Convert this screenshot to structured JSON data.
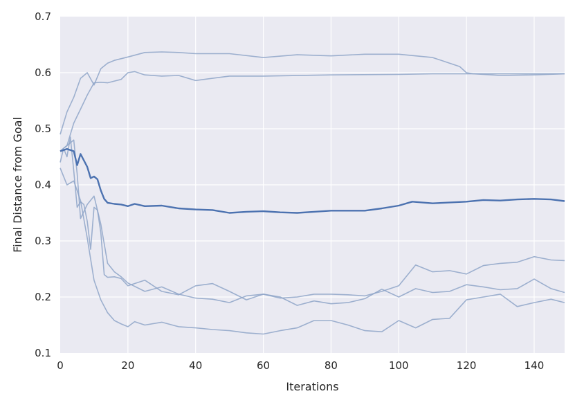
{
  "chart_data": {
    "type": "line",
    "title": "",
    "xlabel": "Iterations",
    "ylabel": "Final Distance from Goal",
    "xlim": [
      0,
      149
    ],
    "ylim": [
      0.1,
      0.7
    ],
    "xticks": [
      0,
      20,
      40,
      60,
      80,
      100,
      120,
      140
    ],
    "yticks": [
      0.1,
      0.2,
      0.3,
      0.4,
      0.5,
      0.6,
      0.7
    ],
    "grid": true,
    "background": "#EAEAF2",
    "mean_color": "#4C72B0",
    "run_color": "#8EA4C8",
    "series": [
      {
        "role": "mean",
        "x": [
          0,
          2,
          4,
          5,
          6,
          8,
          9,
          10,
          11,
          12,
          13,
          14,
          16,
          18,
          20,
          22,
          25,
          30,
          35,
          40,
          45,
          50,
          55,
          60,
          65,
          70,
          75,
          80,
          85,
          90,
          95,
          100,
          104,
          110,
          120,
          125,
          130,
          135,
          140,
          145,
          149
        ],
        "y": [
          0.46,
          0.464,
          0.46,
          0.435,
          0.455,
          0.432,
          0.412,
          0.415,
          0.41,
          0.39,
          0.375,
          0.368,
          0.366,
          0.365,
          0.362,
          0.366,
          0.362,
          0.363,
          0.358,
          0.356,
          0.355,
          0.35,
          0.352,
          0.353,
          0.351,
          0.35,
          0.352,
          0.354,
          0.354,
          0.354,
          0.358,
          0.363,
          0.37,
          0.367,
          0.37,
          0.373,
          0.372,
          0.374,
          0.375,
          0.374,
          0.371
        ]
      },
      {
        "role": "run",
        "x": [
          0,
          2,
          4,
          6,
          8,
          10,
          12,
          14,
          16,
          20,
          25,
          30,
          35,
          40,
          50,
          60,
          70,
          80,
          90,
          100,
          110,
          115,
          118,
          120,
          122,
          125,
          130,
          140,
          149
        ],
        "y": [
          0.49,
          0.53,
          0.556,
          0.59,
          0.6,
          0.578,
          0.607,
          0.617,
          0.622,
          0.628,
          0.636,
          0.637,
          0.636,
          0.634,
          0.634,
          0.627,
          0.632,
          0.63,
          0.633,
          0.633,
          0.627,
          0.617,
          0.611,
          0.6,
          0.598,
          0.597,
          0.595,
          0.596,
          0.598
        ]
      },
      {
        "role": "run",
        "x": [
          0,
          2,
          4,
          6,
          8,
          10,
          12,
          14,
          16,
          18,
          20,
          22,
          25,
          30,
          35,
          40,
          45,
          50,
          60,
          80,
          100,
          110,
          120,
          149
        ],
        "y": [
          0.46,
          0.47,
          0.51,
          0.535,
          0.56,
          0.582,
          0.583,
          0.582,
          0.585,
          0.588,
          0.6,
          0.602,
          0.596,
          0.594,
          0.595,
          0.586,
          0.59,
          0.594,
          0.594,
          0.596,
          0.597,
          0.598,
          0.598,
          0.598
        ]
      },
      {
        "role": "run",
        "x": [
          0,
          1,
          2,
          3,
          4,
          5,
          6,
          7,
          8,
          9,
          10,
          11,
          12,
          13,
          14,
          16,
          18,
          20,
          25,
          30,
          35,
          40,
          45,
          50,
          55,
          60,
          65,
          70,
          75,
          80,
          85,
          90,
          95,
          100,
          105,
          110,
          115,
          120,
          125,
          130,
          135,
          140,
          145,
          149
        ],
        "y": [
          0.44,
          0.465,
          0.45,
          0.485,
          0.425,
          0.36,
          0.37,
          0.365,
          0.335,
          0.285,
          0.36,
          0.355,
          0.315,
          0.24,
          0.235,
          0.236,
          0.233,
          0.22,
          0.23,
          0.21,
          0.204,
          0.22,
          0.224,
          0.21,
          0.195,
          0.205,
          0.198,
          0.2,
          0.205,
          0.205,
          0.204,
          0.202,
          0.21,
          0.22,
          0.257,
          0.245,
          0.247,
          0.241,
          0.256,
          0.26,
          0.262,
          0.272,
          0.266,
          0.265
        ]
      },
      {
        "role": "run",
        "x": [
          0,
          2,
          4,
          5,
          6,
          8,
          10,
          12,
          14,
          16,
          18,
          20,
          25,
          30,
          35,
          40,
          45,
          50,
          55,
          60,
          65,
          70,
          75,
          80,
          85,
          90,
          95,
          100,
          105,
          110,
          115,
          120,
          125,
          130,
          135,
          140,
          145,
          149
        ],
        "y": [
          0.46,
          0.47,
          0.48,
          0.42,
          0.34,
          0.365,
          0.38,
          0.33,
          0.26,
          0.245,
          0.236,
          0.225,
          0.21,
          0.218,
          0.205,
          0.198,
          0.196,
          0.19,
          0.202,
          0.205,
          0.2,
          0.185,
          0.193,
          0.188,
          0.19,
          0.197,
          0.214,
          0.2,
          0.215,
          0.208,
          0.21,
          0.222,
          0.218,
          0.213,
          0.215,
          0.232,
          0.215,
          0.208
        ]
      },
      {
        "role": "run",
        "x": [
          0,
          2,
          4,
          6,
          8,
          10,
          12,
          14,
          16,
          18,
          20,
          22,
          25,
          30,
          35,
          40,
          45,
          50,
          55,
          60,
          65,
          70,
          75,
          80,
          85,
          90,
          95,
          100,
          105,
          110,
          115,
          120,
          125,
          130,
          135,
          140,
          145,
          149
        ],
        "y": [
          0.43,
          0.4,
          0.407,
          0.372,
          0.305,
          0.23,
          0.195,
          0.172,
          0.158,
          0.152,
          0.147,
          0.156,
          0.15,
          0.155,
          0.147,
          0.145,
          0.142,
          0.14,
          0.136,
          0.134,
          0.14,
          0.145,
          0.158,
          0.158,
          0.15,
          0.14,
          0.138,
          0.158,
          0.145,
          0.16,
          0.162,
          0.195,
          0.2,
          0.205,
          0.183,
          0.19,
          0.196,
          0.19
        ]
      }
    ]
  }
}
